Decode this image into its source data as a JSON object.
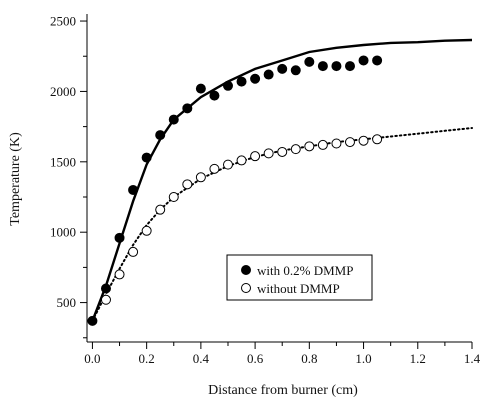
{
  "chart_data": {
    "type": "scatter",
    "title": "",
    "xlabel": "Distance from burner (cm)",
    "ylabel": "Temperature (K)",
    "xlim": [
      -0.02,
      1.4
    ],
    "ylim": [
      220,
      2550
    ],
    "xticks": [
      0.0,
      0.2,
      0.4,
      0.6,
      0.8,
      1.0,
      1.2,
      1.4
    ],
    "xtick_labels": [
      "0.0",
      "0.2",
      "0.4",
      "0.6",
      "0.8",
      "1.0",
      "1.2",
      "1.4"
    ],
    "yticks": [
      500,
      1000,
      1500,
      2000,
      2500
    ],
    "ytick_labels": [
      "500",
      "1000",
      "1500",
      "2000",
      "2500"
    ],
    "grid": false,
    "legend_position": "lower-right",
    "series": [
      {
        "name": "with 0.2% DMMP",
        "marker": "filled-circle",
        "color": "#000000",
        "x": [
          0.0,
          0.05,
          0.1,
          0.15,
          0.2,
          0.25,
          0.3,
          0.35,
          0.4,
          0.45,
          0.5,
          0.55,
          0.6,
          0.65,
          0.7,
          0.75,
          0.8,
          0.85,
          0.9,
          0.95,
          1.0,
          1.05
        ],
        "y": [
          370,
          600,
          960,
          1300,
          1530,
          1690,
          1800,
          1880,
          2020,
          1970,
          2040,
          2070,
          2090,
          2120,
          2160,
          2150,
          2210,
          2180,
          2180,
          2180,
          2220,
          2220
        ]
      },
      {
        "name": "without DMMP",
        "marker": "open-circle",
        "color": "#000000",
        "x": [
          0.05,
          0.1,
          0.15,
          0.2,
          0.25,
          0.3,
          0.35,
          0.4,
          0.45,
          0.5,
          0.55,
          0.6,
          0.65,
          0.7,
          0.75,
          0.8,
          0.85,
          0.9,
          0.95,
          1.0,
          1.05
        ],
        "y": [
          520,
          700,
          860,
          1010,
          1160,
          1250,
          1340,
          1390,
          1450,
          1480,
          1510,
          1540,
          1560,
          1570,
          1590,
          1610,
          1620,
          1630,
          1640,
          1650,
          1660
        ]
      },
      {
        "name": "with 0.2% DMMP fit",
        "style": "solid",
        "color": "#000000",
        "x": [
          0.0,
          0.05,
          0.1,
          0.15,
          0.2,
          0.25,
          0.3,
          0.4,
          0.5,
          0.6,
          0.7,
          0.8,
          0.9,
          1.0,
          1.1,
          1.2,
          1.3,
          1.4
        ],
        "y": [
          370,
          620,
          920,
          1220,
          1480,
          1660,
          1800,
          1960,
          2070,
          2160,
          2220,
          2280,
          2310,
          2330,
          2345,
          2350,
          2360,
          2365
        ]
      },
      {
        "name": "without DMMP fit",
        "style": "dotted",
        "color": "#000000",
        "x": [
          0.0,
          0.05,
          0.1,
          0.15,
          0.2,
          0.25,
          0.3,
          0.4,
          0.5,
          0.6,
          0.7,
          0.8,
          0.9,
          1.0,
          1.1,
          1.2,
          1.3,
          1.4
        ],
        "y": [
          370,
          560,
          740,
          910,
          1050,
          1160,
          1250,
          1380,
          1470,
          1535,
          1580,
          1610,
          1640,
          1660,
          1680,
          1700,
          1720,
          1740
        ]
      }
    ],
    "legend": [
      {
        "label": "with 0.2% DMMP",
        "marker": "filled-circle"
      },
      {
        "label": "without DMMP",
        "marker": "open-circle"
      }
    ]
  }
}
